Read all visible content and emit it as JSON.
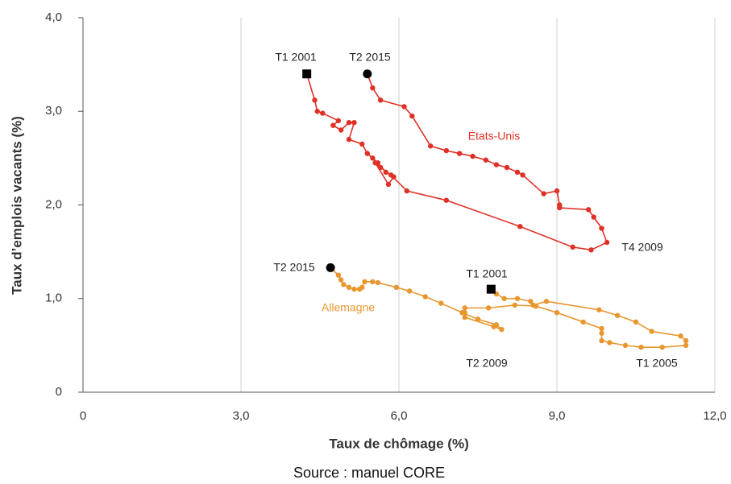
{
  "chart_data": {
    "type": "line",
    "x_label": "Taux de chômage (%)",
    "y_label": "Taux d’emplois vacants (%)",
    "source": "Source : manuel CORE",
    "xlim": [
      0,
      12
    ],
    "ylim": [
      0,
      4
    ],
    "xticks": [
      0,
      {
        "value": 3,
        "label": "3,0"
      },
      {
        "value": 6,
        "label": "6,0"
      },
      {
        "value": 9,
        "label": "9,0"
      },
      {
        "value": 12,
        "label": "12,0"
      }
    ],
    "yticks": [
      0,
      {
        "value": 1,
        "label": "1,0"
      },
      {
        "value": 2,
        "label": "2,0"
      },
      {
        "value": 3,
        "label": "3,0"
      },
      {
        "value": 4,
        "label": "4,0"
      }
    ],
    "grid": true,
    "series": [
      {
        "name": "États-Unis",
        "color": "#e03127",
        "x": [
          4.25,
          4.4,
          4.45,
          4.55,
          4.85,
          4.75,
          4.9,
          5.05,
          5.15,
          5.05,
          5.3,
          5.4,
          5.5,
          5.6,
          5.75,
          5.9,
          5.8,
          5.55,
          5.65,
          5.85,
          6.15,
          6.9,
          8.3,
          9.3,
          9.65,
          9.95,
          9.85,
          9.7,
          9.6,
          9.05,
          9.05,
          9.0,
          8.75,
          8.35,
          8.25,
          8.05,
          7.85,
          7.65,
          7.4,
          7.15,
          6.9,
          6.6,
          6.25,
          6.1,
          5.65,
          5.5,
          5.4
        ],
        "values": [
          3.4,
          3.12,
          3.0,
          2.98,
          2.9,
          2.85,
          2.8,
          2.88,
          2.88,
          2.7,
          2.65,
          2.55,
          2.5,
          2.45,
          2.35,
          2.3,
          2.22,
          2.45,
          2.4,
          2.32,
          2.15,
          2.05,
          1.77,
          1.55,
          1.52,
          1.6,
          1.75,
          1.87,
          1.95,
          1.97,
          2.0,
          2.15,
          2.12,
          2.32,
          2.35,
          2.4,
          2.43,
          2.48,
          2.52,
          2.55,
          2.58,
          2.63,
          2.95,
          3.05,
          3.12,
          3.25,
          3.4
        ]
      },
      {
        "name": "Allemagne",
        "color": "#e8962e",
        "x": [
          7.75,
          7.85,
          8.0,
          8.25,
          8.5,
          8.55,
          8.8,
          9.8,
          10.15,
          10.5,
          10.8,
          11.35,
          11.45,
          11.45,
          11.0,
          10.6,
          10.3,
          10.0,
          9.85,
          9.85,
          9.85,
          9.5,
          9.0,
          8.6,
          8.2,
          7.7,
          7.25,
          7.25,
          7.25,
          7.8,
          7.95,
          7.85,
          7.5,
          7.2,
          6.8,
          6.5,
          6.2,
          5.95,
          5.6,
          5.5,
          5.35,
          5.3,
          5.25,
          5.15,
          5.05,
          4.95,
          4.9,
          4.85,
          4.7
        ],
        "values": [
          1.1,
          1.05,
          1.0,
          1.0,
          0.97,
          0.93,
          0.97,
          0.88,
          0.82,
          0.75,
          0.65,
          0.6,
          0.55,
          0.5,
          0.48,
          0.48,
          0.5,
          0.53,
          0.55,
          0.63,
          0.68,
          0.75,
          0.85,
          0.92,
          0.93,
          0.9,
          0.9,
          0.85,
          0.8,
          0.7,
          0.67,
          0.72,
          0.78,
          0.85,
          0.95,
          1.02,
          1.08,
          1.12,
          1.17,
          1.18,
          1.18,
          1.12,
          1.1,
          1.1,
          1.12,
          1.15,
          1.2,
          1.25,
          1.33
        ]
      }
    ],
    "annotations": [
      "T1 2001",
      "T2 2015",
      "T4 2009",
      "T2 2015",
      "T1 2001",
      "T2 2009",
      "T1 2005"
    ]
  }
}
